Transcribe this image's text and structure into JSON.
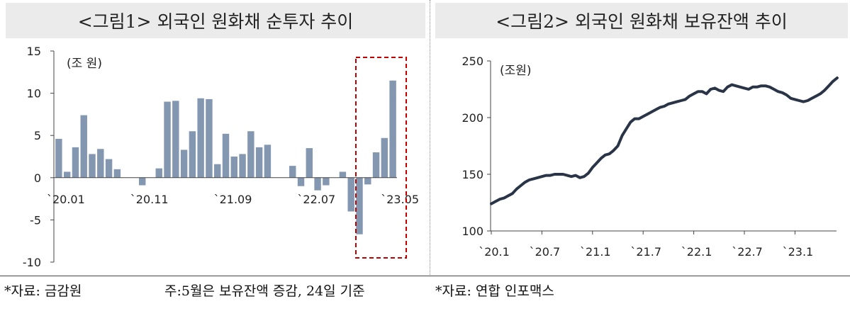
{
  "charts": {
    "left_title": "<그림1> 외국인 원화채 순투자 추이",
    "right_title": "<그림2> 외국인 원화채 보유잔액 추이"
  },
  "footnotes": {
    "left_source": "*자료: 금감원",
    "left_note": "주:5월은 보유잔액 증감, 24일 기준",
    "right_source": "*자료: 연합 인포맥스"
  },
  "colors": {
    "bar": "#8497b0",
    "line": "#2a3447",
    "highlight_box": "#c00000",
    "title_bg": "#ebebeb"
  },
  "chart_data": [
    {
      "type": "bar",
      "unit_label": "(조 원)",
      "ylim": [
        -10,
        15
      ],
      "yticks": [
        15,
        10,
        5,
        0,
        -5,
        -10
      ],
      "tick_labels": [
        "`20.01",
        "`20.11",
        "`21.09",
        "`22.07",
        "`23.05"
      ],
      "tick_label_indices": [
        0,
        10,
        20,
        30,
        40
      ],
      "values": [
        4.6,
        0.7,
        3.6,
        7.4,
        2.8,
        3.4,
        2.2,
        1.0,
        0.0,
        0.0,
        -0.9,
        0.0,
        1.1,
        9.0,
        9.1,
        3.3,
        5.5,
        9.4,
        9.3,
        1.6,
        5.2,
        2.5,
        2.8,
        5.5,
        3.6,
        3.9,
        0.0,
        0.0,
        1.4,
        -1.0,
        3.5,
        -1.5,
        -0.9,
        0.0,
        0.7,
        -4.0,
        -6.7,
        -0.8,
        3.0,
        4.7,
        11.5
      ],
      "highlight": "last five months (dashed box)",
      "grid": false
    },
    {
      "type": "line",
      "unit_label": "(조원)",
      "ylim": [
        100,
        250
      ],
      "yticks": [
        250,
        200,
        150,
        100
      ],
      "x_tick_labels": [
        "`20.1",
        "`20.7",
        "`21.1",
        "`21.7",
        "`22.1",
        "`22.7",
        "`23.1"
      ],
      "x_tick_months": [
        0,
        6,
        12,
        18,
        24,
        30,
        36
      ],
      "x_months": [
        0,
        0.5,
        1,
        1.5,
        2,
        2.5,
        3,
        3.5,
        4,
        4.5,
        5,
        5.5,
        6,
        6.5,
        7,
        7.5,
        8,
        8.5,
        9,
        9.5,
        10,
        10.5,
        11,
        11.5,
        12,
        12.5,
        13,
        13.5,
        14,
        14.5,
        15,
        15.5,
        16,
        16.5,
        17,
        17.5,
        18,
        18.5,
        19,
        19.5,
        20,
        20.5,
        21,
        21.5,
        22,
        22.5,
        23,
        23.5,
        24,
        24.5,
        25,
        25.5,
        26,
        26.5,
        27,
        27.5,
        28,
        28.5,
        29,
        29.5,
        30,
        30.5,
        31,
        31.5,
        32,
        32.5,
        33,
        33.5,
        34,
        34.5,
        35,
        35.5,
        36,
        36.5,
        37,
        37.5,
        38,
        38.5,
        39,
        39.5,
        40,
        40.5,
        41
      ],
      "values": [
        124,
        126,
        128,
        129,
        131,
        133,
        137,
        140,
        143,
        145,
        146,
        147,
        148,
        149,
        149,
        150,
        150,
        150,
        149,
        148,
        149,
        147,
        148,
        151,
        156,
        160,
        164,
        167,
        168,
        171,
        175,
        184,
        190,
        196,
        199,
        199,
        201,
        203,
        205,
        207,
        209,
        210,
        212,
        213,
        214,
        215,
        216,
        219,
        221,
        223,
        223,
        221,
        225,
        226,
        224,
        223,
        227,
        229,
        228,
        227,
        226,
        225,
        227,
        227,
        228,
        228,
        227,
        225,
        223,
        222,
        220,
        217,
        216,
        215,
        214,
        215,
        217,
        219,
        221,
        224,
        228,
        232,
        235
      ],
      "grid": false
    }
  ]
}
